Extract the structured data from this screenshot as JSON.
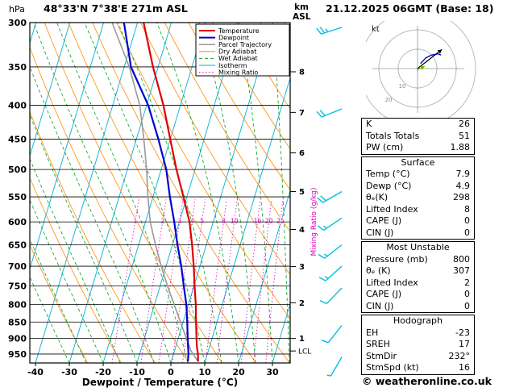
{
  "header": {
    "pressure_unit": "hPa",
    "station": "48°33'N 7°38'E 271m ASL",
    "datetime": "21.12.2025 06GMT (Base: 18)",
    "km_label": "km",
    "asl_label": "ASL",
    "kt_label": "kt"
  },
  "colors": {
    "temperature": "#e00000",
    "dewpoint": "#0000d0",
    "parcel": "#999999",
    "dry_adiabat": "#ff8c00",
    "wet_adiabat": "#00a020",
    "isotherm": "#00b0d8",
    "mixing_ratio": "#dd00bb",
    "wind_barb": "#00c0e0",
    "grid": "#000000"
  },
  "chart_data": {
    "type": "line",
    "title": "Skew-T log-P sounding 48°33'N 7°38'E 271m ASL",
    "xlabel": "Dewpoint / Temperature (°C)",
    "x_ticks": [
      -40,
      -30,
      -20,
      -10,
      0,
      10,
      20,
      30
    ],
    "pressure_ticks": [
      300,
      350,
      400,
      450,
      500,
      550,
      600,
      650,
      700,
      750,
      800,
      850,
      900,
      950
    ],
    "pressure_range": [
      300,
      980
    ],
    "km_ticks": [
      1,
      2,
      3,
      4,
      5,
      6,
      7,
      8
    ],
    "lcl_label": "LCL",
    "lcl_pressure": 940,
    "mixing_ratio_values": [
      1,
      2,
      3,
      4,
      5,
      8,
      10,
      16,
      20,
      25
    ],
    "mixing_ratio_axis_label": "Mixing Ratio (g/kg)",
    "series": [
      {
        "id": "parcel",
        "name": "Parcel Trajectory",
        "width": 1.6,
        "points": [
          [
            975,
            7.9
          ],
          [
            940,
            4.9
          ],
          [
            900,
            2.4
          ],
          [
            850,
            -0.8
          ],
          [
            800,
            -4.2
          ],
          [
            750,
            -7.8
          ],
          [
            700,
            -11.4
          ],
          [
            650,
            -15
          ],
          [
            600,
            -18.6
          ],
          [
            550,
            -21.5
          ],
          [
            500,
            -24.3
          ],
          [
            450,
            -27.8
          ],
          [
            400,
            -32
          ],
          [
            350,
            -38.5
          ],
          [
            300,
            -47.5
          ]
        ]
      },
      {
        "id": "dewpoint",
        "name": "Dewpoint",
        "width": 2.2,
        "points": [
          [
            975,
            4.9
          ],
          [
            950,
            4.4
          ],
          [
            925,
            3.6
          ],
          [
            900,
            2.8
          ],
          [
            850,
            1.2
          ],
          [
            800,
            -0.6
          ],
          [
            750,
            -3
          ],
          [
            700,
            -5.5
          ],
          [
            650,
            -8.5
          ],
          [
            600,
            -11.5
          ],
          [
            550,
            -15
          ],
          [
            500,
            -18.5
          ],
          [
            450,
            -23.5
          ],
          [
            400,
            -29.5
          ],
          [
            350,
            -38
          ],
          [
            300,
            -44
          ]
        ]
      },
      {
        "id": "temperature",
        "name": "Temperature",
        "width": 2.2,
        "points": [
          [
            975,
            7.9
          ],
          [
            950,
            7.2
          ],
          [
            925,
            6.2
          ],
          [
            900,
            5.4
          ],
          [
            850,
            3.8
          ],
          [
            800,
            2.2
          ],
          [
            750,
            0.2
          ],
          [
            700,
            -1.8
          ],
          [
            650,
            -4.2
          ],
          [
            600,
            -7
          ],
          [
            550,
            -11
          ],
          [
            500,
            -15.5
          ],
          [
            450,
            -20
          ],
          [
            400,
            -25
          ],
          [
            350,
            -31.5
          ],
          [
            300,
            -38.2
          ]
        ]
      }
    ],
    "wind_barbs": [
      {
        "p": 960,
        "dir": 210,
        "spd": 5
      },
      {
        "p": 860,
        "dir": 218,
        "spd": 10
      },
      {
        "p": 755,
        "dir": 224,
        "spd": 10
      },
      {
        "p": 700,
        "dir": 228,
        "spd": 15
      },
      {
        "p": 650,
        "dir": 232,
        "spd": 15
      },
      {
        "p": 592,
        "dir": 236,
        "spd": 15
      },
      {
        "p": 540,
        "dir": 240,
        "spd": 20
      },
      {
        "p": 405,
        "dir": 248,
        "spd": 20
      },
      {
        "p": 305,
        "dir": 252,
        "spd": 25
      }
    ],
    "legend": [
      {
        "label": "Temperature",
        "color": "#e00000",
        "width": 2,
        "dash": ""
      },
      {
        "label": "Dewpoint",
        "color": "#0000d0",
        "width": 2,
        "dash": ""
      },
      {
        "label": "Parcel Trajectory",
        "color": "#999999",
        "width": 1.5,
        "dash": ""
      },
      {
        "label": "Dry Adiabat",
        "color": "#ff8c00",
        "width": 1,
        "dash": ""
      },
      {
        "label": "Wet Adiabat",
        "color": "#00a020",
        "width": 1,
        "dash": "4,3"
      },
      {
        "label": "Isotherm",
        "color": "#00b0d8",
        "width": 1,
        "dash": ""
      },
      {
        "label": "Mixing Ratio",
        "color": "#dd00bb",
        "width": 1,
        "dash": "1.5,2.5"
      }
    ]
  },
  "hodograph": {
    "unit": "kt",
    "rings": [
      10,
      20,
      30
    ],
    "ring_labels": [
      "10",
      "20"
    ],
    "trace": [
      {
        "dir": 210,
        "spd": 3
      },
      {
        "dir": 218,
        "spd": 7
      },
      {
        "dir": 226,
        "spd": 10
      },
      {
        "dir": 234,
        "spd": 13
      },
      {
        "dir": 240,
        "spd": 14
      }
    ],
    "storm_motion": {
      "dir": 232,
      "spd": 16
    }
  },
  "panels": [
    {
      "title": "",
      "rows": [
        [
          "K",
          "26"
        ],
        [
          "Totals Totals",
          "51"
        ],
        [
          "PW (cm)",
          "1.88"
        ]
      ]
    },
    {
      "title": "Surface",
      "rows": [
        [
          "Temp (°C)",
          "7.9"
        ],
        [
          "Dewp (°C)",
          "4.9"
        ],
        [
          "θₑ(K)",
          "298"
        ],
        [
          "Lifted Index",
          "8"
        ],
        [
          "CAPE (J)",
          "0"
        ],
        [
          "CIN (J)",
          "0"
        ]
      ]
    },
    {
      "title": "Most Unstable",
      "rows": [
        [
          "Pressure (mb)",
          "800"
        ],
        [
          "θₑ (K)",
          "307"
        ],
        [
          "Lifted Index",
          "2"
        ],
        [
          "CAPE (J)",
          "0"
        ],
        [
          "CIN (J)",
          "0"
        ]
      ]
    },
    {
      "title": "Hodograph",
      "rows": [
        [
          "EH",
          "-23"
        ],
        [
          "SREH",
          "17"
        ],
        [
          "StmDir",
          "232°"
        ],
        [
          "StmSpd (kt)",
          "16"
        ]
      ]
    }
  ],
  "footer": {
    "copyright": "© weatheronline.co.uk"
  }
}
